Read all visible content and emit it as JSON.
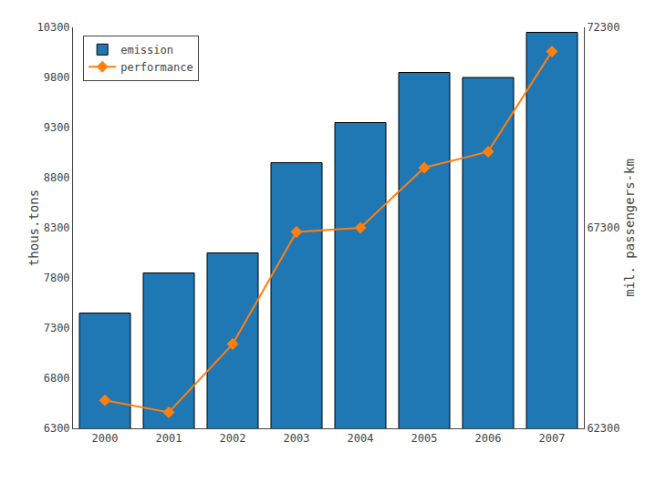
{
  "chart_data": {
    "type": "bar",
    "categories": [
      "2000",
      "2001",
      "2002",
      "2003",
      "2004",
      "2005",
      "2006",
      "2007"
    ],
    "series": [
      {
        "name": "emission",
        "type": "bar",
        "values": [
          7450,
          7850,
          8050,
          8950,
          9350,
          9850,
          9800,
          10250
        ]
      },
      {
        "name": "performance",
        "type": "line",
        "axis": "y2",
        "marker": "diamond",
        "values": [
          63000,
          62700,
          64400,
          67200,
          67300,
          68800,
          69200,
          71700
        ]
      }
    ],
    "y_label": "thous.tons",
    "y2_label": "mil. passengers-km",
    "ylim": [
      6300,
      10300
    ],
    "yticks": [
      6300,
      6800,
      7300,
      7800,
      8300,
      8800,
      9300,
      9800,
      10300
    ],
    "y2lim": [
      62300,
      72300
    ],
    "y2ticks": [
      62300,
      67300,
      72300
    ],
    "grid": false,
    "legend": "upper left"
  }
}
